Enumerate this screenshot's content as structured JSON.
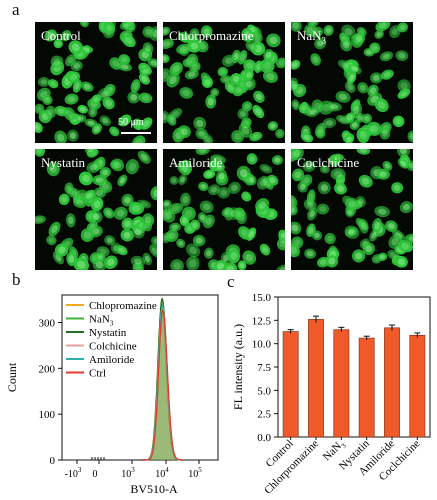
{
  "panels": {
    "a": "a",
    "b": "b",
    "c": "c"
  },
  "microscopy": {
    "tiles": [
      {
        "label": "Control",
        "seed": 11
      },
      {
        "label": "Chlorpromazine",
        "seed": 23
      },
      {
        "label": "NaN₃",
        "seed": 37,
        "label_base": "NaN",
        "label_sub": "3"
      },
      {
        "label": "Nystatin",
        "seed": 41
      },
      {
        "label": "Amiloride",
        "seed": 53
      },
      {
        "label": "Coclchicine",
        "seed": 67
      }
    ],
    "scale_bar": "50 μm",
    "cell_color": "#2ec63a"
  },
  "chart_data": [
    {
      "type": "area",
      "panel": "b",
      "ylabel": "Count",
      "xlabel": "BV510-A",
      "y_ticks": [
        0,
        100,
        200,
        300
      ],
      "ylim": [
        0,
        360
      ],
      "x_scale": "biexponential",
      "x_ticks": [
        {
          "base": "-10",
          "exp": "3",
          "value": -1000
        },
        {
          "base": "0",
          "exp": "",
          "value": 0
        },
        {
          "base": "10",
          "exp": "3",
          "value": 1000
        },
        {
          "base": "10",
          "exp": "4",
          "value": 10000
        },
        {
          "base": "10",
          "exp": "5",
          "value": 100000
        }
      ],
      "legend_position": "top-left",
      "series": [
        {
          "name": "Chloprom<span></span>azine",
          "label": "Chlopromazine",
          "color": "#f5a623",
          "peak": 330
        },
        {
          "name": "NaN3",
          "label_base": "NaN",
          "label_sub": "3",
          "color": "#3cb43c",
          "peak": 338
        },
        {
          "name": "Nystatin",
          "label": "Nystatin",
          "color": "#1f6e24",
          "peak": 352
        },
        {
          "name": "Colchicine",
          "label": "Colchicine",
          "color": "#e6a0a0",
          "peak": 334
        },
        {
          "name": "Amiloride",
          "label": "Amiloride",
          "color": "#2bb0a8",
          "peak": 336
        },
        {
          "name": "Ctrl",
          "label": "Ctrl",
          "color": "#e53935",
          "peak": 326
        }
      ]
    },
    {
      "type": "bar",
      "panel": "c",
      "ylabel": "FL intensity (a.u.)",
      "categories": [
        "Control",
        "Chlorpromazine",
        "NaN3",
        "Nystatin",
        "Amiloride",
        "Coclchicine"
      ],
      "category_labels": [
        "Control",
        "Chlorpromazine",
        "NaN",
        "Nystatin",
        "Amiloride",
        "Coclchicine"
      ],
      "category_subs": [
        "",
        "",
        "3",
        "",
        "",
        ""
      ],
      "values": [
        11.3,
        12.6,
        11.5,
        10.6,
        11.7,
        10.9
      ],
      "errors": [
        0.2,
        0.35,
        0.25,
        0.2,
        0.3,
        0.25
      ],
      "ylim": [
        0,
        15
      ],
      "y_ticks": [
        0.0,
        2.5,
        5.0,
        7.5,
        10.0,
        12.5,
        15.0
      ],
      "bar_color": "#f05a28",
      "grid": false
    }
  ]
}
